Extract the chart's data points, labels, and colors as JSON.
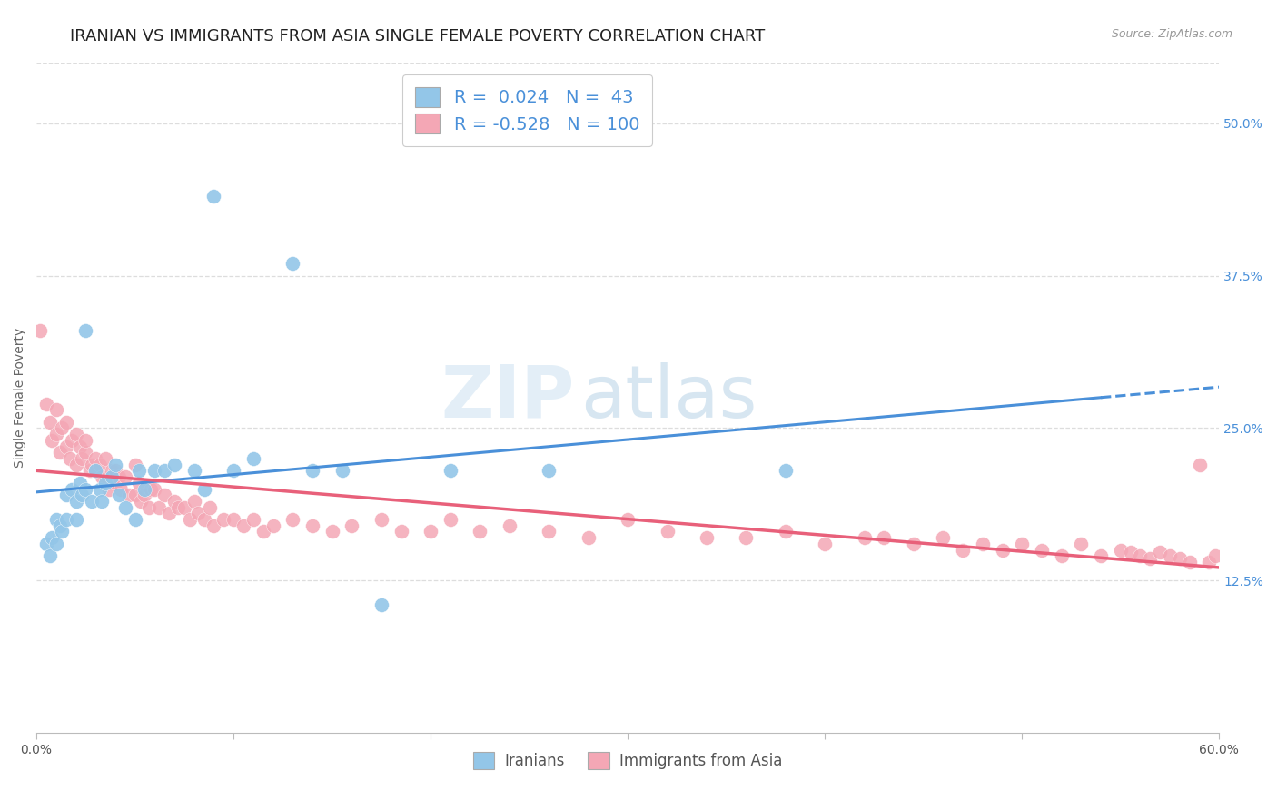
{
  "title": "IRANIAN VS IMMIGRANTS FROM ASIA SINGLE FEMALE POVERTY CORRELATION CHART",
  "source": "Source: ZipAtlas.com",
  "ylabel": "Single Female Poverty",
  "watermark_zip": "ZIP",
  "watermark_atlas": "atlas",
  "xlim": [
    0.0,
    0.6
  ],
  "ylim": [
    0.0,
    0.55
  ],
  "xtick_vals": [
    0.0,
    0.1,
    0.2,
    0.3,
    0.4,
    0.5,
    0.6
  ],
  "xtick_labels": [
    "0.0%",
    "",
    "",
    "",
    "",
    "",
    "60.0%"
  ],
  "ytick_vals_right": [
    0.5,
    0.375,
    0.25,
    0.125
  ],
  "ytick_labels_right": [
    "50.0%",
    "37.5%",
    "25.0%",
    "12.5%"
  ],
  "color_iranians": "#93C6E8",
  "color_asia": "#F4A7B5",
  "color_iranians_line": "#4A90D9",
  "color_asia_line": "#E8607A",
  "R_iranians": 0.024,
  "N_iranians": 43,
  "R_asia": -0.528,
  "N_asia": 100,
  "legend_label_iranians": "Iranians",
  "legend_label_asia": "Immigrants from Asia",
  "background_color": "#FFFFFF",
  "grid_color": "#DDDDDD",
  "title_fontsize": 13,
  "axis_label_fontsize": 10,
  "tick_fontsize": 10,
  "iranians_x": [
    0.005,
    0.007,
    0.008,
    0.01,
    0.01,
    0.012,
    0.013,
    0.015,
    0.015,
    0.018,
    0.02,
    0.02,
    0.022,
    0.023,
    0.025,
    0.025,
    0.028,
    0.03,
    0.032,
    0.033,
    0.035,
    0.038,
    0.04,
    0.042,
    0.045,
    0.05,
    0.052,
    0.055,
    0.06,
    0.065,
    0.07,
    0.08,
    0.085,
    0.09,
    0.1,
    0.11,
    0.13,
    0.14,
    0.155,
    0.175,
    0.21,
    0.26,
    0.38
  ],
  "iranians_y": [
    0.155,
    0.145,
    0.16,
    0.175,
    0.155,
    0.17,
    0.165,
    0.175,
    0.195,
    0.2,
    0.19,
    0.175,
    0.205,
    0.195,
    0.33,
    0.2,
    0.19,
    0.215,
    0.2,
    0.19,
    0.205,
    0.21,
    0.22,
    0.195,
    0.185,
    0.175,
    0.215,
    0.2,
    0.215,
    0.215,
    0.22,
    0.215,
    0.2,
    0.44,
    0.215,
    0.225,
    0.385,
    0.215,
    0.215,
    0.105,
    0.215,
    0.215,
    0.215
  ],
  "asia_x": [
    0.002,
    0.005,
    0.007,
    0.008,
    0.01,
    0.01,
    0.012,
    0.013,
    0.015,
    0.015,
    0.017,
    0.018,
    0.02,
    0.02,
    0.022,
    0.023,
    0.025,
    0.025,
    0.027,
    0.028,
    0.03,
    0.03,
    0.032,
    0.033,
    0.035,
    0.037,
    0.038,
    0.04,
    0.04,
    0.042,
    0.043,
    0.045,
    0.047,
    0.05,
    0.05,
    0.052,
    0.053,
    0.055,
    0.057,
    0.058,
    0.06,
    0.062,
    0.065,
    0.067,
    0.07,
    0.072,
    0.075,
    0.078,
    0.08,
    0.082,
    0.085,
    0.088,
    0.09,
    0.095,
    0.1,
    0.105,
    0.11,
    0.115,
    0.12,
    0.13,
    0.14,
    0.15,
    0.16,
    0.175,
    0.185,
    0.2,
    0.21,
    0.225,
    0.24,
    0.26,
    0.28,
    0.3,
    0.32,
    0.34,
    0.36,
    0.38,
    0.4,
    0.42,
    0.43,
    0.445,
    0.46,
    0.47,
    0.48,
    0.49,
    0.5,
    0.51,
    0.52,
    0.53,
    0.54,
    0.55,
    0.555,
    0.56,
    0.565,
    0.57,
    0.575,
    0.58,
    0.585,
    0.59,
    0.595,
    0.598
  ],
  "asia_y": [
    0.33,
    0.27,
    0.255,
    0.24,
    0.265,
    0.245,
    0.23,
    0.25,
    0.235,
    0.255,
    0.225,
    0.24,
    0.245,
    0.22,
    0.235,
    0.225,
    0.23,
    0.24,
    0.215,
    0.22,
    0.225,
    0.215,
    0.22,
    0.21,
    0.225,
    0.2,
    0.215,
    0.215,
    0.205,
    0.21,
    0.2,
    0.21,
    0.195,
    0.22,
    0.195,
    0.205,
    0.19,
    0.195,
    0.185,
    0.2,
    0.2,
    0.185,
    0.195,
    0.18,
    0.19,
    0.185,
    0.185,
    0.175,
    0.19,
    0.18,
    0.175,
    0.185,
    0.17,
    0.175,
    0.175,
    0.17,
    0.175,
    0.165,
    0.17,
    0.175,
    0.17,
    0.165,
    0.17,
    0.175,
    0.165,
    0.165,
    0.175,
    0.165,
    0.17,
    0.165,
    0.16,
    0.175,
    0.165,
    0.16,
    0.16,
    0.165,
    0.155,
    0.16,
    0.16,
    0.155,
    0.16,
    0.15,
    0.155,
    0.15,
    0.155,
    0.15,
    0.145,
    0.155,
    0.145,
    0.15,
    0.148,
    0.145,
    0.143,
    0.148,
    0.145,
    0.143,
    0.14,
    0.22,
    0.14,
    0.145
  ]
}
